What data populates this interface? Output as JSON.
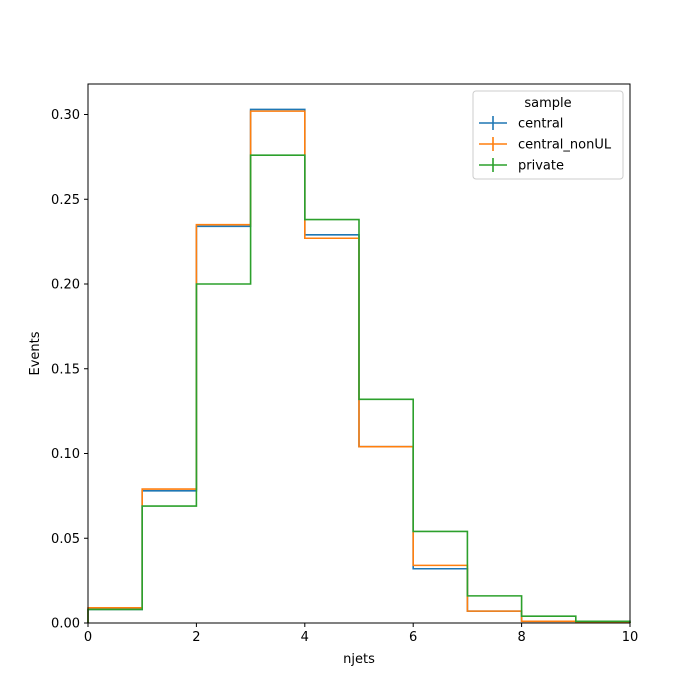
{
  "chart_data": {
    "type": "step",
    "xlabel": "njets",
    "ylabel": "Events",
    "xlim": [
      0,
      10
    ],
    "ylim": [
      0,
      0.318
    ],
    "x_ticks": [
      "0",
      "2",
      "4",
      "6",
      "8",
      "10"
    ],
    "y_ticks": [
      "0.00",
      "0.05",
      "0.10",
      "0.15",
      "0.20",
      "0.25",
      "0.30"
    ],
    "bin_edges": [
      0,
      1,
      2,
      3,
      4,
      5,
      6,
      7,
      8,
      9,
      10
    ],
    "legend": {
      "title": "sample",
      "placement": "upper right"
    },
    "series": [
      {
        "name": "central",
        "color": "#1f77b4",
        "values": [
          0.008,
          0.078,
          0.234,
          0.303,
          0.229,
          0.104,
          0.032,
          0.007,
          0.001,
          0.0002
        ]
      },
      {
        "name": "central_nonUL",
        "color": "#ff7f0e",
        "values": [
          0.009,
          0.079,
          0.235,
          0.302,
          0.227,
          0.104,
          0.034,
          0.007,
          0.001,
          0.0002
        ]
      },
      {
        "name": "private",
        "color": "#2ca02c",
        "values": [
          0.008,
          0.069,
          0.2,
          0.276,
          0.238,
          0.132,
          0.054,
          0.016,
          0.004,
          0.001
        ]
      }
    ]
  }
}
